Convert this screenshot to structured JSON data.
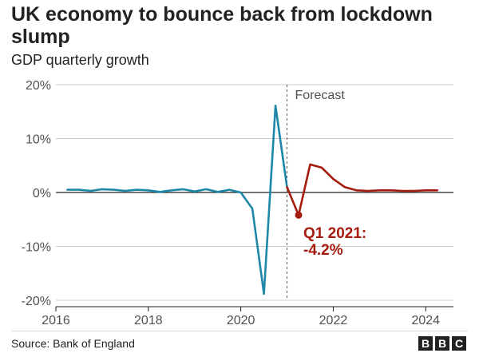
{
  "title": "UK economy to bounce back from lockdown slump",
  "subtitle": "GDP quarterly growth",
  "source": "Source: Bank of England",
  "logo": [
    "B",
    "B",
    "C"
  ],
  "colors": {
    "historical": "#1e88a8",
    "forecast": "#a51c0f",
    "axis": "#222222",
    "grid": "#cccccc",
    "text": "#505050"
  },
  "chart_data": {
    "type": "line",
    "title": "UK economy to bounce back from lockdown slump",
    "subtitle": "GDP quarterly growth",
    "ylabel": "",
    "xlabel": "",
    "ylim": [
      -20,
      20
    ],
    "xlim": [
      2016,
      2024.6
    ],
    "y_ticks": [
      -20,
      -10,
      0,
      10,
      20
    ],
    "y_tick_labels": [
      "-20%",
      "-10%",
      "0%",
      "10%",
      "20%"
    ],
    "x_ticks": [
      2016,
      2018,
      2020,
      2022,
      2024
    ],
    "x_tick_labels": [
      "2016",
      "2018",
      "2020",
      "2022",
      "2024"
    ],
    "grid": "horizontal",
    "forecast_start": 2021.0,
    "forecast_label": "Forecast",
    "series": [
      {
        "x": [
          2016.25,
          2016.5,
          2016.75,
          2017.0,
          2017.25,
          2017.5,
          2017.75,
          2018.0,
          2018.25,
          2018.5,
          2018.75,
          2019.0,
          2019.25,
          2019.5,
          2019.75,
          2020.0,
          2020.25,
          2020.5,
          2020.75,
          2021.0
        ],
        "y": [
          0.5,
          0.5,
          0.3,
          0.6,
          0.5,
          0.3,
          0.5,
          0.4,
          0.1,
          0.4,
          0.6,
          0.2,
          0.6,
          0.1,
          0.5,
          0.0,
          -3.0,
          -18.8,
          16.1,
          1.0
        ],
        "style": "historical"
      },
      {
        "x": [
          2021.0,
          2021.25,
          2021.5,
          2021.75,
          2022.0,
          2022.25,
          2022.5,
          2022.75,
          2023.0,
          2023.25,
          2023.5,
          2023.75,
          2024.0,
          2024.25
        ],
        "y": [
          1.0,
          -4.2,
          5.2,
          4.6,
          2.5,
          1.0,
          0.4,
          0.3,
          0.4,
          0.4,
          0.3,
          0.3,
          0.4,
          0.4
        ],
        "style": "forecast"
      }
    ],
    "annotations": [
      {
        "text": [
          "Q1 2021:",
          "-4.2%"
        ],
        "x": 2021.25,
        "y": -4.2
      }
    ]
  }
}
